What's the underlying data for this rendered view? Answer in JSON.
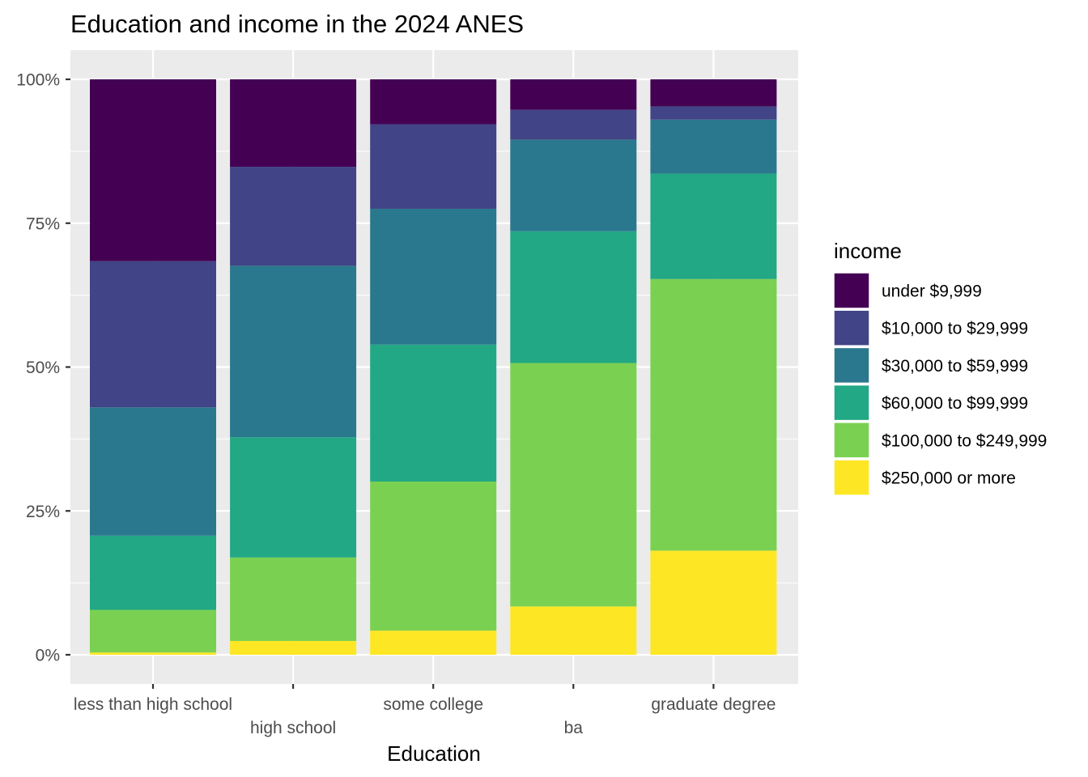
{
  "chart_data": {
    "type": "bar",
    "stacked": true,
    "position": "fill",
    "title": "Education and income in the 2024 ANES",
    "xlabel": "Education",
    "ylabel": "",
    "ylim": [
      0,
      1
    ],
    "yticks": [
      0,
      0.25,
      0.5,
      0.75,
      1.0
    ],
    "ytick_labels": [
      "0%",
      "25%",
      "50%",
      "75%",
      "100%"
    ],
    "grid": true,
    "categories": [
      "less than high school",
      "high school",
      "some college",
      "ba",
      "graduate degree"
    ],
    "legend": {
      "title": "income",
      "placement": "right"
    },
    "series": [
      {
        "name": "$250,000 or more",
        "color": "#FDE725",
        "values": [
          0.004,
          0.024,
          0.042,
          0.084,
          0.181
        ]
      },
      {
        "name": "$100,000 to $249,999",
        "color": "#7AD151",
        "values": [
          0.074,
          0.145,
          0.259,
          0.423,
          0.472
        ]
      },
      {
        "name": "$60,000 to $99,999",
        "color": "#22A884",
        "values": [
          0.129,
          0.209,
          0.238,
          0.229,
          0.183
        ]
      },
      {
        "name": "$30,000 to $59,999",
        "color": "#2A788E",
        "values": [
          0.223,
          0.298,
          0.236,
          0.159,
          0.094
        ]
      },
      {
        "name": "$10,000 to $29,999",
        "color": "#414487",
        "values": [
          0.254,
          0.172,
          0.147,
          0.052,
          0.023
        ]
      },
      {
        "name": "under $9,999",
        "color": "#440154",
        "values": [
          0.316,
          0.152,
          0.078,
          0.053,
          0.047
        ]
      }
    ],
    "legend_order": [
      "under $9,999",
      "$10,000 to $29,999",
      "$30,000 to $59,999",
      "$60,000 to $99,999",
      "$100,000 to $249,999",
      "$250,000 or more"
    ],
    "panel_color": "#EBEBEB",
    "grid_color": "#FFFFFF"
  }
}
